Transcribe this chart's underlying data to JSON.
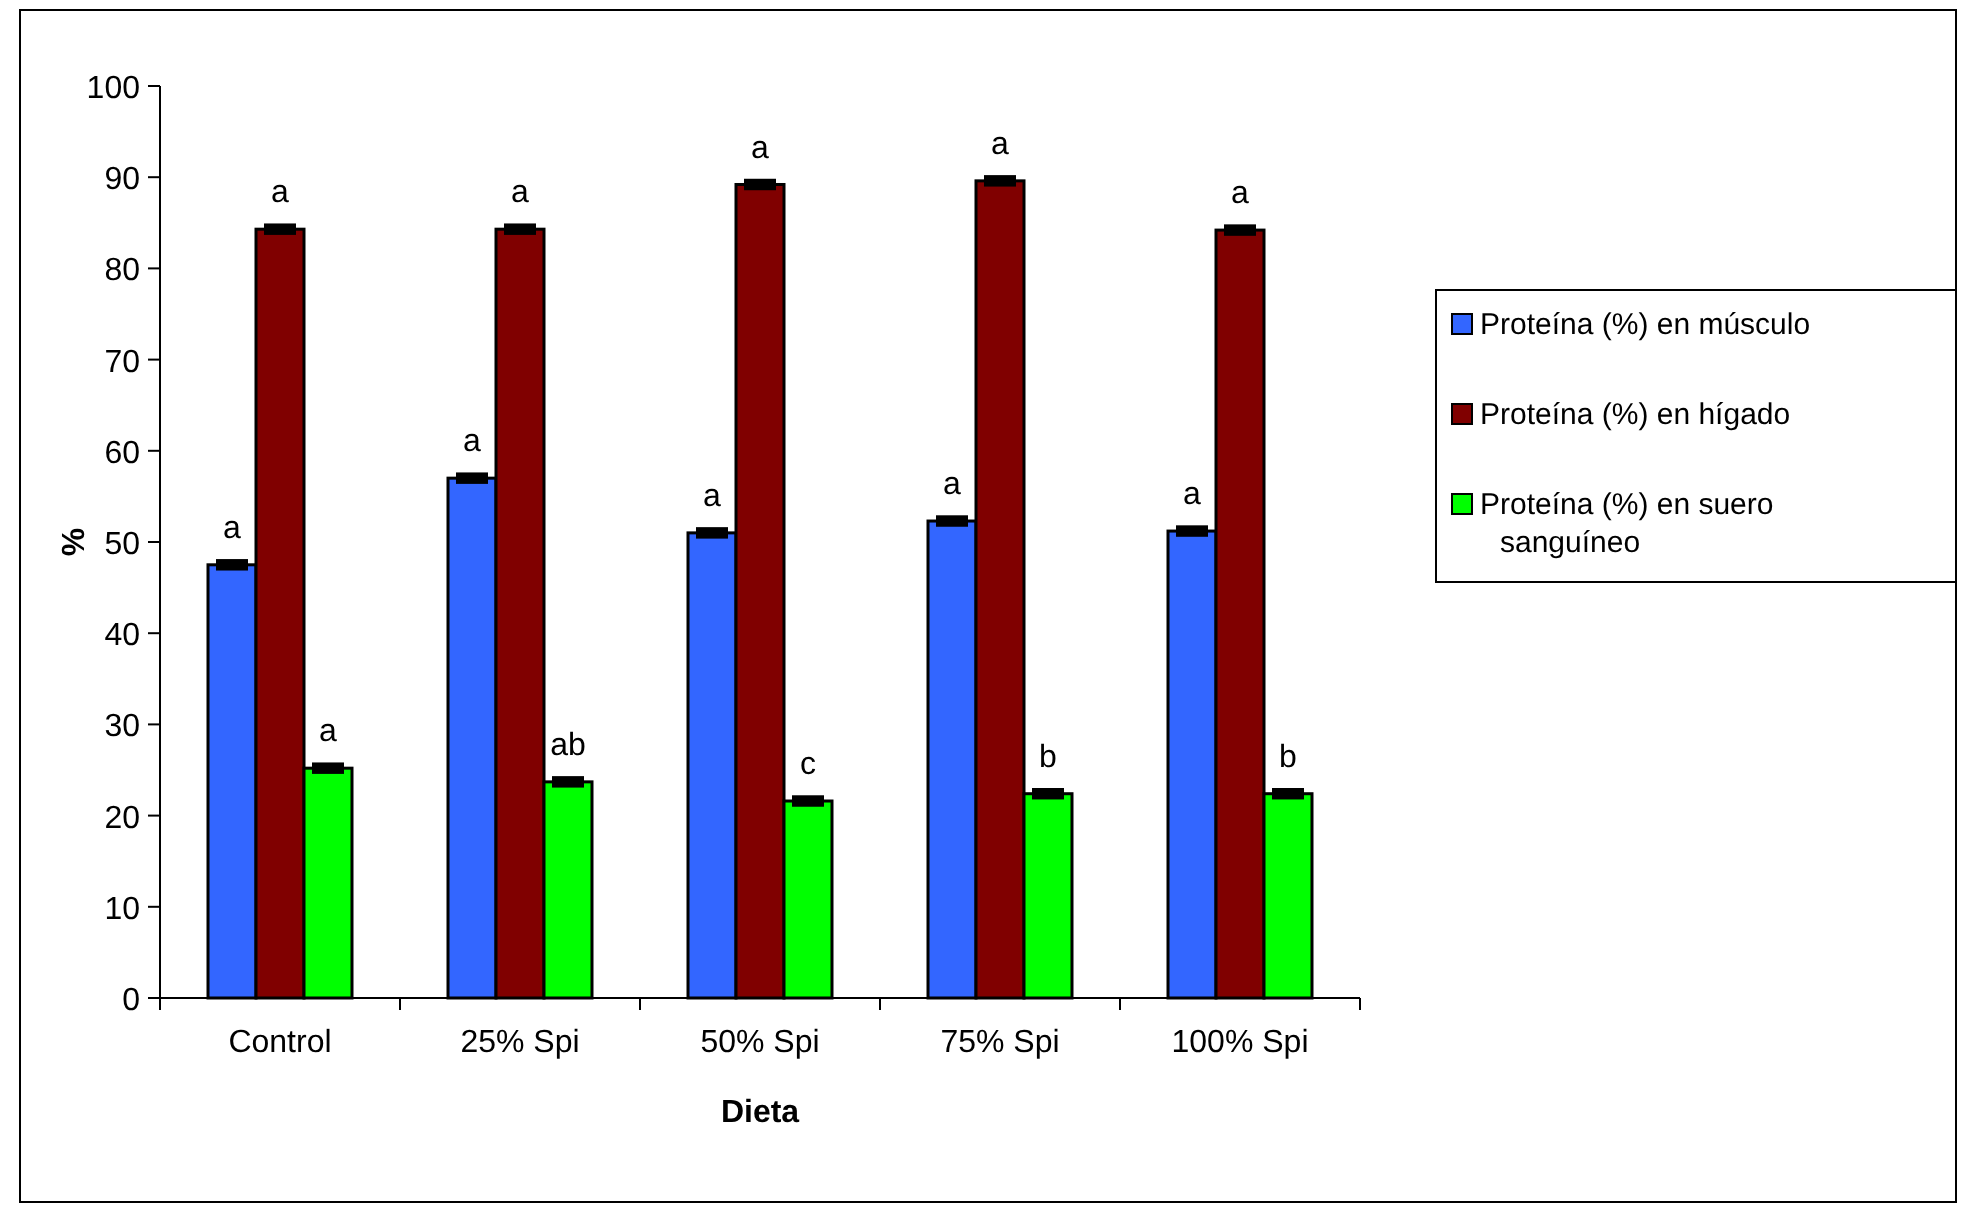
{
  "chart_data": {
    "type": "bar",
    "xlabel": "Dieta",
    "ylabel": "%",
    "categories": [
      "Control",
      "25% Spi",
      "50% Spi",
      "75% Spi",
      "100% Spi"
    ],
    "series": [
      {
        "name": "Proteína (%) en músculo",
        "color": "#3366ff",
        "values": [
          47.5,
          57,
          51,
          52.3,
          51.2
        ],
        "errors": [
          0.3,
          0.3,
          0.3,
          0.3,
          0.3
        ],
        "value_labels": [
          "a",
          "a",
          "a",
          "a",
          "a"
        ]
      },
      {
        "name": "Proteína (%) en hígado",
        "color": "#800000",
        "values": [
          84.3,
          84.3,
          89.2,
          89.6,
          84.2
        ],
        "errors": [
          0.3,
          0.3,
          0.3,
          0.3,
          0.3
        ],
        "value_labels": [
          "a",
          "a",
          "a",
          "a",
          "a"
        ]
      },
      {
        "name": "Proteína (%) en suero sanguíneo",
        "color": "#00ff00",
        "values": [
          25.2,
          23.7,
          21.6,
          22.4,
          22.4
        ],
        "errors": [
          0.3,
          0.3,
          0.3,
          0.3,
          0.3
        ],
        "value_labels": [
          "a",
          "ab",
          "c",
          "b",
          "b"
        ]
      }
    ],
    "ylim": [
      0,
      100
    ],
    "yticks": [
      0,
      10,
      20,
      30,
      40,
      50,
      60,
      70,
      80,
      90,
      100
    ],
    "grid": false,
    "legend": "right"
  }
}
